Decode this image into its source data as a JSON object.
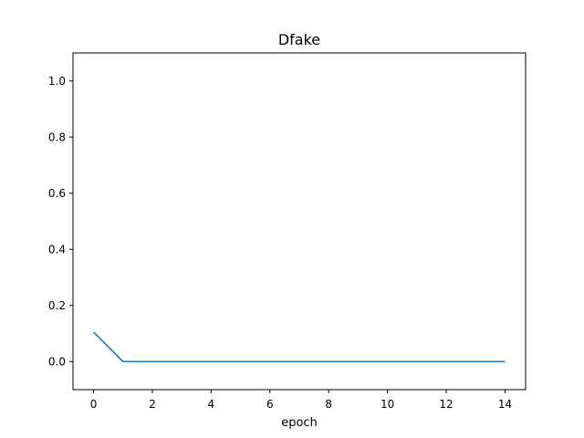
{
  "chart_data": {
    "type": "line",
    "title": "Dfake",
    "xlabel": "epoch",
    "ylabel": "",
    "xlim": [
      -0.7,
      14.7
    ],
    "ylim": [
      -0.1,
      1.1
    ],
    "xticks": [
      0,
      2,
      4,
      6,
      8,
      10,
      12,
      14
    ],
    "yticks": [
      0.0,
      0.2,
      0.4,
      0.6,
      0.8,
      1.0
    ],
    "xtick_labels": [
      "0",
      "2",
      "4",
      "6",
      "8",
      "10",
      "12",
      "14"
    ],
    "ytick_labels": [
      "0.0",
      "0.2",
      "0.4",
      "0.6",
      "0.8",
      "1.0"
    ],
    "grid": false,
    "series": [
      {
        "color": "#1f77b4",
        "x": [
          0,
          1,
          2,
          3,
          4,
          5,
          6,
          7,
          8,
          9,
          10,
          11,
          12,
          13,
          14
        ],
        "values": [
          0.105,
          0.0,
          0.0,
          0.0,
          0.0,
          0.0,
          0.0,
          0.0,
          0.0,
          0.0,
          0.0,
          0.0,
          0.0,
          0.0,
          0.0
        ]
      }
    ]
  }
}
